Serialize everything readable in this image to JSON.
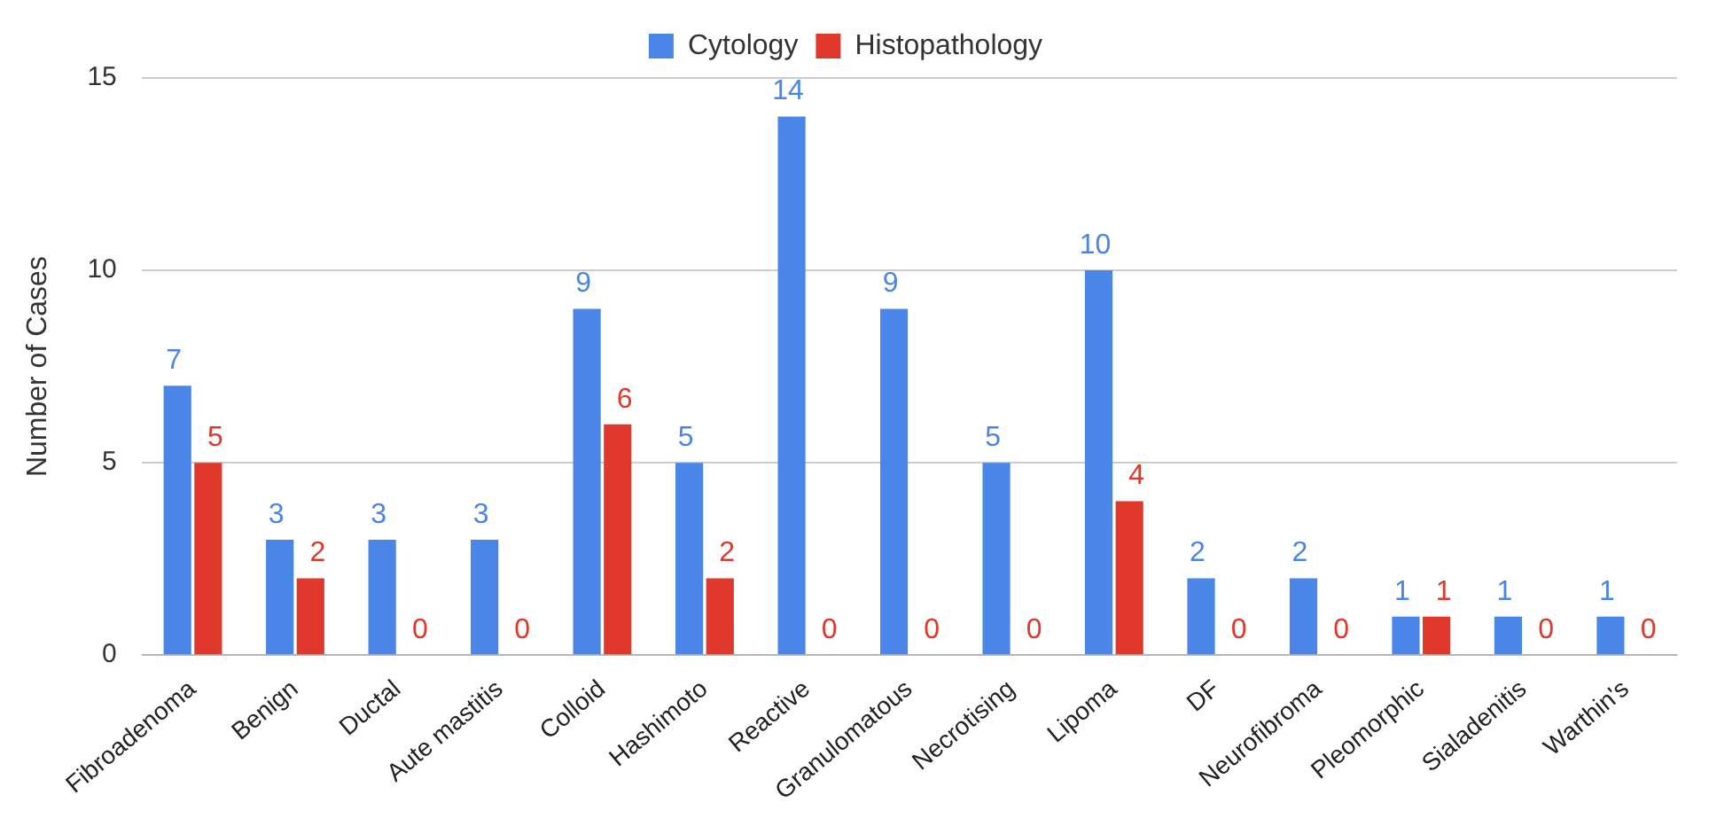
{
  "chart_data": {
    "type": "bar",
    "ylabel": "Number of Cases",
    "categories": [
      "Fibroadenoma",
      "Benign",
      "Ductal",
      "Aute mastitis",
      "Colloid",
      "Hashimoto",
      "Reactive",
      "Granulomatous",
      "Necrotising",
      "Lipoma",
      "DF",
      "Neurofibroma",
      "Pleomorphic",
      "Sialadenitis",
      "Warthin's"
    ],
    "series": [
      {
        "name": "Cytology",
        "color": "#4a86e8",
        "values": [
          7,
          3,
          3,
          3,
          9,
          5,
          14,
          9,
          5,
          10,
          2,
          2,
          1,
          1,
          1
        ]
      },
      {
        "name": "Histopathology",
        "color": "#e0392b",
        "values": [
          5,
          2,
          0,
          0,
          6,
          2,
          0,
          0,
          0,
          4,
          0,
          0,
          1,
          0,
          0
        ]
      }
    ],
    "ylim": [
      0,
      15
    ],
    "yticks": [
      0,
      5,
      10,
      15
    ],
    "grid": "y",
    "legend": "top",
    "data_labels": true
  }
}
